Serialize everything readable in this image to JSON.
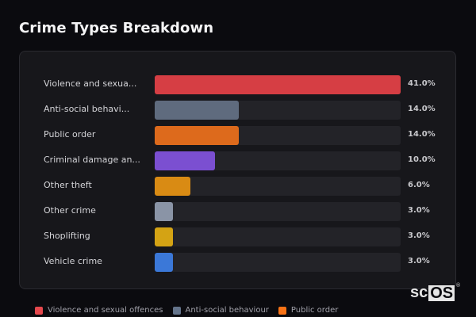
{
  "header": {
    "title": "Crime Types Breakdown"
  },
  "colors": {
    "background": "#0b0b0f",
    "card": "#17171b",
    "track": "#232328"
  },
  "chart_data": {
    "type": "bar",
    "orientation": "horizontal",
    "title": "Crime Types Breakdown",
    "categories": [
      "Violence and sexual offences",
      "Anti-social behaviour",
      "Public order",
      "Criminal damage and arson",
      "Other theft",
      "Other crime",
      "Shoplifting",
      "Vehicle crime"
    ],
    "display_labels": [
      "Violence and sexua...",
      "Anti-social behavi...",
      "Public order",
      "Criminal damage an...",
      "Other theft",
      "Other crime",
      "Shoplifting",
      "Vehicle crime"
    ],
    "values": [
      41.0,
      14.0,
      14.0,
      10.0,
      6.0,
      3.0,
      3.0,
      3.0
    ],
    "value_labels": [
      "41.0%",
      "14.0%",
      "14.0%",
      "10.0%",
      "6.0%",
      "3.0%",
      "3.0%",
      "3.0%"
    ],
    "colors": [
      "#d63e44",
      "#5f6b7e",
      "#dd6a1c",
      "#7b4fd1",
      "#d98b14",
      "#8a94a6",
      "#d4a314",
      "#3b78d8"
    ],
    "xlabel": "",
    "ylabel": "",
    "xlim": [
      0,
      41
    ],
    "grid": false,
    "legend_position": "bottom"
  },
  "legend": {
    "items": [
      {
        "label": "Violence and sexual offences",
        "color": "#e5484d"
      },
      {
        "label": "Anti-social behaviour",
        "color": "#64748b"
      },
      {
        "label": "Public order",
        "color": "#f97316"
      }
    ]
  },
  "watermark": {
    "prefix": "sc",
    "boxed": "OS",
    "mark": "®"
  }
}
